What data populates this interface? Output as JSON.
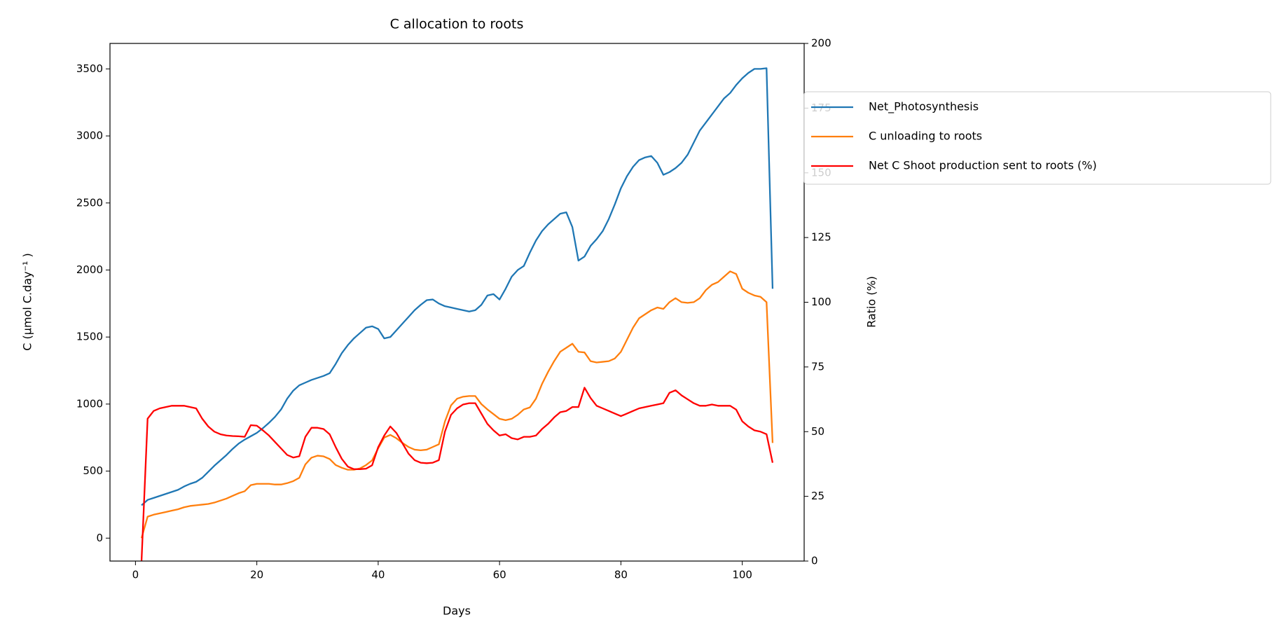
{
  "chart_data": {
    "type": "line",
    "title": "C allocation to roots",
    "x_label": "Days",
    "y_label": "C (µmol C.day⁻¹ )",
    "y2_label": "Ratio (%)",
    "x": [
      1,
      2,
      3,
      4,
      5,
      6,
      7,
      8,
      9,
      10,
      11,
      12,
      13,
      14,
      15,
      16,
      17,
      18,
      19,
      20,
      21,
      22,
      23,
      24,
      25,
      26,
      27,
      28,
      29,
      30,
      31,
      32,
      33,
      34,
      35,
      36,
      37,
      38,
      39,
      40,
      41,
      42,
      43,
      44,
      45,
      46,
      47,
      48,
      49,
      50,
      51,
      52,
      53,
      54,
      55,
      56,
      57,
      58,
      59,
      60,
      61,
      62,
      63,
      64,
      65,
      66,
      67,
      68,
      69,
      70,
      71,
      72,
      73,
      74,
      75,
      76,
      77,
      78,
      79,
      80,
      81,
      82,
      83,
      84,
      85,
      86,
      87,
      88,
      89,
      90,
      91,
      92,
      93,
      94,
      95,
      96,
      97,
      98,
      99,
      100,
      101,
      102,
      103,
      104,
      105
    ],
    "series": [
      {
        "name": "Net_Photosynthesis",
        "color": "#1f77b4",
        "axis": "y",
        "values": [
          245,
          285,
          300,
          315,
          330,
          345,
          360,
          385,
          405,
          420,
          450,
          495,
          540,
          580,
          620,
          665,
          705,
          735,
          760,
          785,
          820,
          860,
          905,
          960,
          1040,
          1100,
          1140,
          1160,
          1180,
          1195,
          1210,
          1230,
          1300,
          1380,
          1440,
          1490,
          1530,
          1570,
          1580,
          1560,
          1490,
          1500,
          1550,
          1600,
          1650,
          1700,
          1740,
          1775,
          1780,
          1750,
          1730,
          1720,
          1710,
          1700,
          1690,
          1700,
          1740,
          1810,
          1820,
          1780,
          1860,
          1950,
          2000,
          2030,
          2130,
          2220,
          2290,
          2340,
          2380,
          2420,
          2430,
          2320,
          2070,
          2100,
          2180,
          2230,
          2290,
          2380,
          2490,
          2610,
          2700,
          2770,
          2820,
          2840,
          2850,
          2800,
          2710,
          2730,
          2760,
          2800,
          2860,
          2950,
          3040,
          3100,
          3160,
          3220,
          3280,
          3320,
          3380,
          3430,
          3470,
          3500,
          3500,
          3505,
          1860
        ]
      },
      {
        "name": "C unloading to roots",
        "color": "#ff7f0e",
        "axis": "y",
        "values": [
          0,
          160,
          175,
          185,
          195,
          205,
          215,
          230,
          240,
          245,
          250,
          255,
          265,
          280,
          295,
          315,
          335,
          350,
          395,
          405,
          405,
          405,
          400,
          400,
          410,
          425,
          450,
          550,
          600,
          615,
          610,
          590,
          545,
          525,
          510,
          510,
          520,
          545,
          580,
          670,
          750,
          770,
          745,
          710,
          680,
          660,
          655,
          660,
          680,
          700,
          870,
          990,
          1040,
          1055,
          1060,
          1060,
          1000,
          960,
          925,
          890,
          880,
          890,
          920,
          960,
          975,
          1040,
          1150,
          1240,
          1320,
          1390,
          1420,
          1450,
          1390,
          1385,
          1320,
          1310,
          1315,
          1320,
          1340,
          1390,
          1480,
          1570,
          1640,
          1670,
          1700,
          1720,
          1710,
          1760,
          1790,
          1760,
          1755,
          1760,
          1790,
          1850,
          1890,
          1910,
          1950,
          1990,
          1970,
          1860,
          1830,
          1810,
          1800,
          1760,
          710
        ]
      },
      {
        "name": "Net C Shoot production sent to roots (%)",
        "color": "#ff0000",
        "axis": "y2",
        "values": [
          0,
          55,
          58,
          59,
          59.5,
          60,
          60,
          60,
          59.5,
          59,
          55,
          52,
          50,
          49,
          48.5,
          48.3,
          48.2,
          48,
          52.5,
          52.3,
          50.5,
          48.5,
          46,
          43.5,
          41,
          40,
          40.5,
          48,
          51.5,
          51.5,
          51,
          49,
          44,
          39.5,
          36.5,
          35.5,
          35.5,
          35.7,
          37,
          44,
          48.5,
          52,
          49.5,
          45.5,
          41.5,
          39,
          38,
          37.8,
          38,
          39,
          50,
          56.5,
          59,
          60.5,
          61,
          61,
          57,
          53,
          50.5,
          48.5,
          49,
          47.5,
          47,
          48,
          48,
          48.5,
          51,
          53,
          55.5,
          57.5,
          58,
          59.5,
          59.5,
          67,
          63,
          60,
          59,
          58,
          57,
          56,
          57,
          58,
          59,
          59.5,
          60,
          60.5,
          61,
          65,
          66,
          64,
          62.5,
          61,
          60,
          60,
          60.5,
          60,
          60,
          60,
          58.5,
          54,
          52,
          50.5,
          50,
          49,
          38
        ]
      }
    ],
    "xlim": [
      -4.2,
      110.2
    ],
    "xticks": [
      0,
      20,
      40,
      60,
      80,
      100
    ],
    "ylim": [
      -171,
      3690
    ],
    "yticks": [
      0,
      500,
      1000,
      1500,
      2000,
      2500,
      3000,
      3500
    ],
    "y2lim": [
      0,
      200
    ],
    "y2ticks": [
      0,
      25,
      50,
      75,
      100,
      125,
      150,
      175,
      200
    ],
    "legend_loc": "upper right",
    "grid": false
  }
}
